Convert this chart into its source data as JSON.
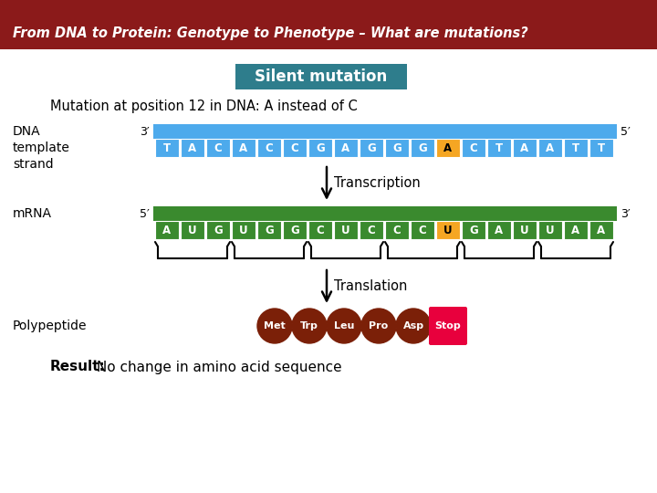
{
  "title_bar_color": "#8B1A1A",
  "title_text": "From DNA to Protein: Genotype to Phenotype – What are mutations?",
  "title_text_color": "#FFFFFF",
  "bg_color": "#FFFFFF",
  "silent_mutation_box_color": "#2E7D8C",
  "silent_mutation_text": "Silent mutation",
  "mutation_desc": "Mutation at position 12 in DNA: A instead of C",
  "dna_label": "DNA\ntemplate\nstrand",
  "mrna_label": "mRNA",
  "polypeptide_label": "Polypeptide",
  "dna_bases": [
    "T",
    "A",
    "C",
    "A",
    "C",
    "C",
    "G",
    "A",
    "G",
    "G",
    "G",
    "A",
    "C",
    "T",
    "A",
    "A",
    "T",
    "T"
  ],
  "dna_highlight_idx": 11,
  "dna_bar_color": "#4DAAEC",
  "dna_base_color": "#4DAAEC",
  "dna_highlight_color": "#F5A623",
  "dna_text_color": "#FFFFFF",
  "dna_highlight_text_color": "#000000",
  "mrna_bases": [
    "A",
    "U",
    "G",
    "U",
    "G",
    "G",
    "C",
    "U",
    "C",
    "C",
    "C",
    "U",
    "G",
    "A",
    "U",
    "U",
    "A",
    "A"
  ],
  "mrna_highlight_idx": 11,
  "mrna_bar_color": "#3A8A2E",
  "mrna_base_color": "#3A8A2E",
  "mrna_highlight_color": "#F5A623",
  "mrna_text_color": "#FFFFFF",
  "mrna_highlight_text_color": "#000000",
  "dna_3prime": "3′",
  "dna_5prime": "5′",
  "mrna_5prime": "5′",
  "mrna_3prime": "3′",
  "transcription_label": "Transcription",
  "translation_label": "Translation",
  "arrow_color": "#000000",
  "codon_count": 6,
  "peptides": [
    "Met",
    "Trp",
    "Leu",
    "Pro",
    "Asp",
    "Stop"
  ],
  "peptide_colors": [
    "#7B2008",
    "#7B2008",
    "#7B2008",
    "#7B2008",
    "#7B2008",
    "#E8003D"
  ],
  "peptide_text_color": "#FFFFFF",
  "result_bold": "Result:",
  "result_rest": " No change in amino acid sequence"
}
